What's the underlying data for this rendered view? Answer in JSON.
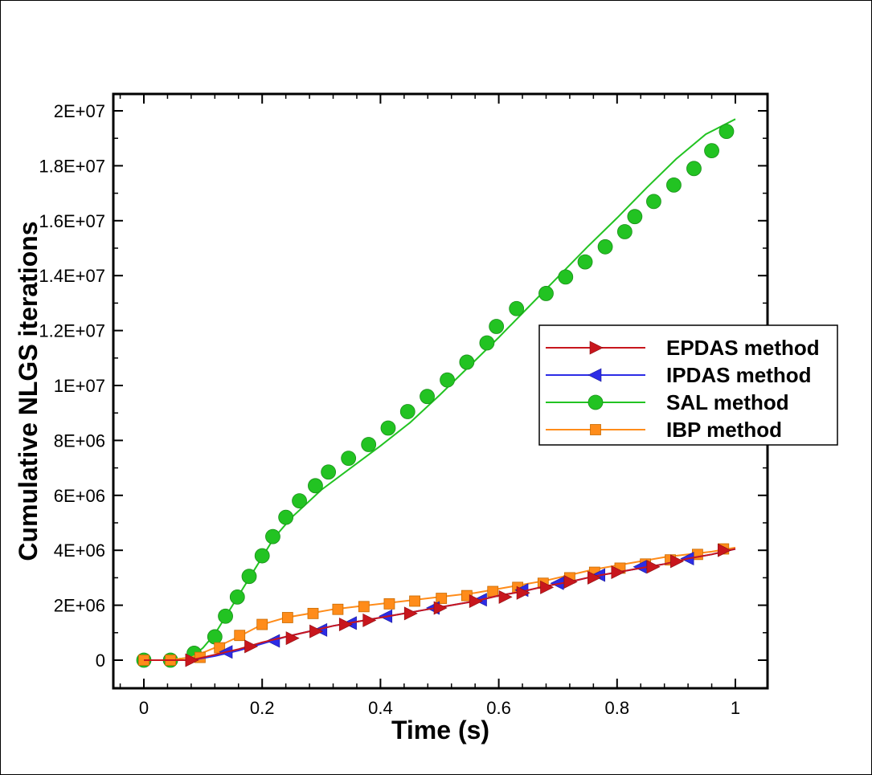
{
  "chart_data": {
    "type": "line",
    "xlabel": "Time (s)",
    "ylabel": "Cumulative NLGS iterations",
    "xlim": [
      -0.05,
      1.04
    ],
    "ylim": [
      -1000000,
      20500000
    ],
    "x_ticks": [
      0,
      0.2,
      0.4,
      0.6,
      0.8,
      1
    ],
    "x_tick_labels": [
      "0",
      "0.2",
      "0.4",
      "0.6",
      "0.8",
      "1"
    ],
    "y_ticks": [
      0,
      2000000,
      4000000,
      6000000,
      8000000,
      10000000,
      12000000,
      14000000,
      16000000,
      18000000,
      20000000
    ],
    "y_tick_labels": [
      "0",
      "2E+06",
      "4E+06",
      "6E+06",
      "8E+06",
      "1E+07",
      "1.2E+07",
      "1.4E+07",
      "1.6E+07",
      "1.8E+07",
      "2E+07"
    ],
    "grid": false,
    "legend_position": "right",
    "series": [
      {
        "name": "EPDAS method",
        "color": "#c8161d",
        "marker": "triangle-right",
        "x": [
          0,
          0.04,
          0.08,
          0.12,
          0.16,
          0.2,
          0.24,
          0.28,
          0.32,
          0.36,
          0.4,
          0.44,
          0.48,
          0.52,
          0.56,
          0.6,
          0.64,
          0.68,
          0.72,
          0.76,
          0.8,
          0.84,
          0.88,
          0.92,
          0.96,
          0.98,
          1
        ],
        "y": [
          0,
          0,
          0,
          200000,
          400000,
          650000,
          850000,
          1050000,
          1250000,
          1400000,
          1550000,
          1700000,
          1850000,
          2000000,
          2150000,
          2350000,
          2500000,
          2700000,
          2850000,
          3050000,
          3200000,
          3350000,
          3500000,
          3700000,
          3850000,
          3950000,
          4050000
        ],
        "marker_x": [
          0.08,
          0.18,
          0.25,
          0.29,
          0.34,
          0.38,
          0.45,
          0.5,
          0.56,
          0.61,
          0.64,
          0.68,
          0.72,
          0.76,
          0.8,
          0.86,
          0.9,
          0.98
        ],
        "marker_y": [
          0,
          500000,
          800000,
          1050000,
          1300000,
          1450000,
          1700000,
          1900000,
          2150000,
          2300000,
          2450000,
          2650000,
          2850000,
          3000000,
          3200000,
          3400000,
          3600000,
          4000000
        ]
      },
      {
        "name": "IPDAS method",
        "color": "#2c2ce6",
        "marker": "triangle-left",
        "x": [
          0,
          0.04,
          0.08,
          0.12,
          0.16,
          0.2,
          0.24,
          0.28,
          0.32,
          0.36,
          0.4,
          0.44,
          0.48,
          0.52,
          0.56,
          0.6,
          0.64,
          0.68,
          0.72,
          0.76,
          0.8,
          0.84,
          0.88,
          0.92,
          0.96,
          0.98,
          1
        ],
        "y": [
          0,
          0,
          0,
          150000,
          350000,
          600000,
          850000,
          1050000,
          1250000,
          1400000,
          1550000,
          1700000,
          1850000,
          2000000,
          2150000,
          2350000,
          2500000,
          2700000,
          2850000,
          3050000,
          3200000,
          3350000,
          3500000,
          3700000,
          3850000,
          3950000,
          4050000
        ],
        "marker_x": [
          0.14,
          0.22,
          0.3,
          0.35,
          0.41,
          0.49,
          0.57,
          0.64,
          0.7,
          0.77,
          0.84,
          0.92
        ],
        "marker_y": [
          300000,
          700000,
          1100000,
          1350000,
          1600000,
          1900000,
          2200000,
          2550000,
          2800000,
          3100000,
          3400000,
          3700000
        ]
      },
      {
        "name": "SAL method",
        "color": "#22c322",
        "marker": "circle",
        "x": [
          0,
          0.04,
          0.08,
          0.1,
          0.12,
          0.14,
          0.16,
          0.18,
          0.2,
          0.22,
          0.25,
          0.3,
          0.35,
          0.4,
          0.45,
          0.5,
          0.55,
          0.6,
          0.65,
          0.7,
          0.75,
          0.8,
          0.85,
          0.9,
          0.95,
          1
        ],
        "y": [
          0,
          0,
          100000,
          450000,
          950000,
          1650000,
          2350000,
          3050000,
          3750000,
          4450000,
          5200000,
          6200000,
          7000000,
          7800000,
          8650000,
          9650000,
          10700000,
          11750000,
          12850000,
          13950000,
          15050000,
          16100000,
          17200000,
          18250000,
          19150000,
          19700000
        ],
        "marker_x": [
          0,
          0.045,
          0.085,
          0.12,
          0.138,
          0.158,
          0.178,
          0.2,
          0.218,
          0.24,
          0.263,
          0.29,
          0.312,
          0.346,
          0.38,
          0.413,
          0.446,
          0.479,
          0.513,
          0.546,
          0.58,
          0.596,
          0.63,
          0.68,
          0.713,
          0.746,
          0.78,
          0.813,
          0.83,
          0.862,
          0.896,
          0.93,
          0.96,
          0.985
        ],
        "marker_y": [
          0,
          0,
          250000,
          850000,
          1600000,
          2300000,
          3050000,
          3800000,
          4500000,
          5200000,
          5800000,
          6350000,
          6850000,
          7350000,
          7850000,
          8450000,
          9050000,
          9600000,
          10200000,
          10850000,
          11550000,
          12150000,
          12800000,
          13350000,
          13950000,
          14500000,
          15050000,
          15600000,
          16150000,
          16700000,
          17300000,
          17900000,
          18550000,
          19250000
        ]
      },
      {
        "name": "IBP method",
        "color": "#ff8c1a",
        "marker": "square",
        "x": [
          0,
          0.04,
          0.08,
          0.12,
          0.16,
          0.2,
          0.24,
          0.28,
          0.32,
          0.36,
          0.4,
          0.44,
          0.48,
          0.52,
          0.56,
          0.6,
          0.64,
          0.68,
          0.72,
          0.76,
          0.8,
          0.84,
          0.88,
          0.92,
          0.96,
          1
        ],
        "y": [
          0,
          0,
          100000,
          450000,
          850000,
          1300000,
          1550000,
          1700000,
          1850000,
          1950000,
          2050000,
          2150000,
          2250000,
          2350000,
          2450000,
          2600000,
          2750000,
          2900000,
          3100000,
          3300000,
          3450000,
          3600000,
          3750000,
          3850000,
          3950000,
          4100000
        ],
        "marker_x": [
          0,
          0.045,
          0.095,
          0.128,
          0.162,
          0.2,
          0.243,
          0.286,
          0.328,
          0.372,
          0.415,
          0.458,
          0.503,
          0.546,
          0.59,
          0.632,
          0.675,
          0.72,
          0.762,
          0.805,
          0.848,
          0.89,
          0.936,
          0.98
        ],
        "marker_y": [
          0,
          0,
          100000,
          450000,
          900000,
          1300000,
          1550000,
          1700000,
          1850000,
          1950000,
          2050000,
          2150000,
          2250000,
          2350000,
          2500000,
          2650000,
          2800000,
          3000000,
          3200000,
          3350000,
          3500000,
          3650000,
          3850000,
          4050000
        ]
      }
    ]
  }
}
